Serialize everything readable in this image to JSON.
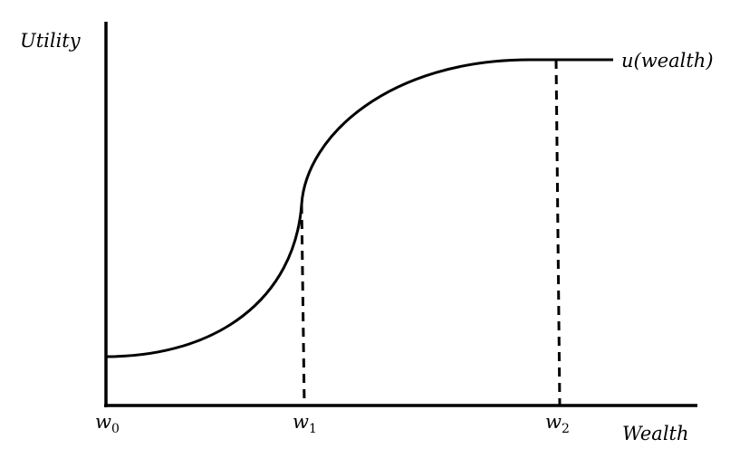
{
  "diagram": {
    "y_axis_label": "Utility",
    "x_axis_label": "Wealth",
    "curve_label": "u(wealth)",
    "x_ticks": [
      {
        "base": "w",
        "sub": "0"
      },
      {
        "base": "w",
        "sub": "1"
      },
      {
        "base": "w",
        "sub": "2"
      }
    ],
    "colors": {
      "line": "#000000",
      "background": "#ffffff"
    }
  }
}
